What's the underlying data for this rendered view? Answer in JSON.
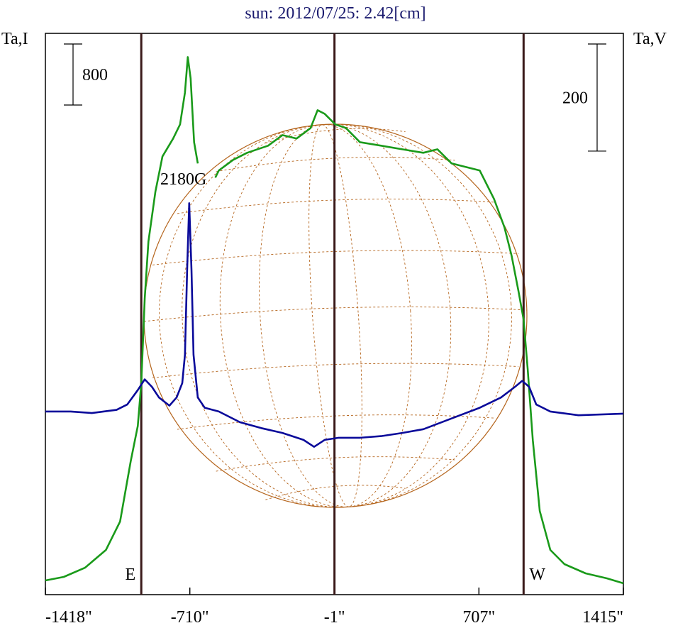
{
  "chart_data": {
    "type": "line",
    "title": "sun: 2012/07/25: 2.42[cm]",
    "y_label": "Ta,I",
    "y2_label": "Ta,V",
    "annotation": "2180G",
    "xlim": [
      -1418,
      1415
    ],
    "xticks": [
      {
        "value": -1418,
        "label": "-1418\""
      },
      {
        "value": -710,
        "label": "-710\""
      },
      {
        "value": -1,
        "label": "-1\""
      },
      {
        "value": 707,
        "label": "707\""
      },
      {
        "value": 1415,
        "label": "1415\""
      }
    ],
    "ylim": [
      0,
      7360
    ],
    "y2lim": [
      -338,
      710
    ],
    "scale_bars": [
      {
        "value": 800,
        "axis": "y"
      },
      {
        "value": 200,
        "axis": "y2"
      }
    ],
    "vertical_lines": [
      {
        "value": -948,
        "label": "E"
      },
      {
        "value": -1
      },
      {
        "value": 926,
        "label": "W"
      }
    ],
    "series": [
      {
        "color": "#1a9a1a",
        "axis": "y",
        "x": [
          -1418,
          -1328,
          -1224,
          -1121,
          -1052,
          -1000,
          -965,
          -948,
          -931,
          -913,
          -879,
          -844,
          -792,
          -758,
          -734,
          -720,
          -706,
          -689,
          -671,
          -620,
          -585,
          -568,
          -498,
          -429,
          -326,
          -256,
          -187,
          -118,
          -84,
          -49,
          3,
          55,
          124,
          228,
          331,
          434,
          504,
          573,
          642,
          711,
          781,
          832,
          867,
          901,
          926,
          946,
          971,
          1005,
          1057,
          1126,
          1230,
          1334,
          1415
        ],
        "values": [
          186,
          233,
          353,
          586,
          958,
          1748,
          2213,
          2771,
          3887,
          4631,
          5282,
          5747,
          5980,
          6166,
          6584,
          7049,
          6770,
          5933,
          5654,
          null,
          5468,
          5561,
          5701,
          5794,
          5887,
          6026,
          5980,
          6119,
          6352,
          6305,
          6166,
          6119,
          5933,
          5887,
          5840,
          5794,
          5840,
          5654,
          5608,
          5561,
          5189,
          4817,
          4445,
          3980,
          3608,
          2957,
          2027,
          1097,
          586,
          400,
          279,
          214,
          149
        ]
      },
      {
        "color": "#0a0a9a",
        "axis": "y2",
        "x": [
          -1418,
          -1294,
          -1190,
          -1069,
          -1017,
          -965,
          -931,
          -896,
          -861,
          -810,
          -775,
          -747,
          -734,
          -723,
          -713,
          -702,
          -692,
          -671,
          -637,
          -568,
          -464,
          -360,
          -256,
          -153,
          -101,
          -49,
          20,
          124,
          228,
          331,
          435,
          573,
          711,
          815,
          884,
          919,
          953,
          988,
          1057,
          1195,
          1415
        ],
        "values": [
          4,
          4,
          1,
          7,
          17,
          44,
          64,
          50,
          30,
          15,
          30,
          57,
          110,
          269,
          393,
          269,
          110,
          30,
          11,
          4,
          -16,
          -27,
          -36,
          -49,
          -62,
          -49,
          -45,
          -45,
          -42,
          -36,
          -29,
          -9,
          11,
          30,
          50,
          61,
          50,
          17,
          4,
          -3,
          0
        ]
      }
    ]
  }
}
